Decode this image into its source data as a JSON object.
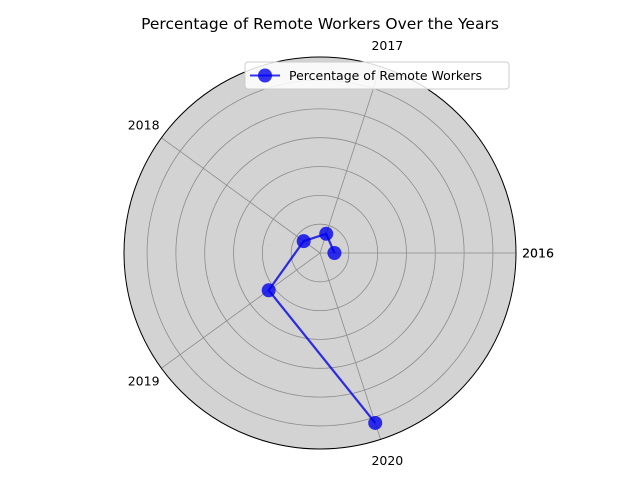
{
  "chart_data": {
    "type": "line",
    "projection": "polar",
    "title": "Percentage of Remote Workers Over the Years",
    "angular_tick_labels": [
      "2016",
      "2016",
      "2017",
      "2018",
      "2019",
      "2020"
    ],
    "series": [
      {
        "name": "Percentage of Remote Workers",
        "color": "#0000ee",
        "marker": "circle",
        "points": [
          {
            "label": "2016",
            "theta_deg": 0,
            "r": 5
          },
          {
            "label": "2017",
            "theta_deg": 72,
            "r": 7
          },
          {
            "label": "2018",
            "theta_deg": 144,
            "r": 7
          },
          {
            "label": "2019",
            "theta_deg": 216,
            "r": 22
          },
          {
            "label": "2020",
            "theta_deg": 288,
            "r": 62
          }
        ]
      }
    ],
    "r_gridlines": [
      10,
      20,
      30,
      40,
      50,
      60
    ],
    "rlim": [
      0,
      68
    ],
    "radial_tick_labels_shown": false,
    "grid": true,
    "legend": "top-right",
    "background": "#d3d3d3"
  }
}
